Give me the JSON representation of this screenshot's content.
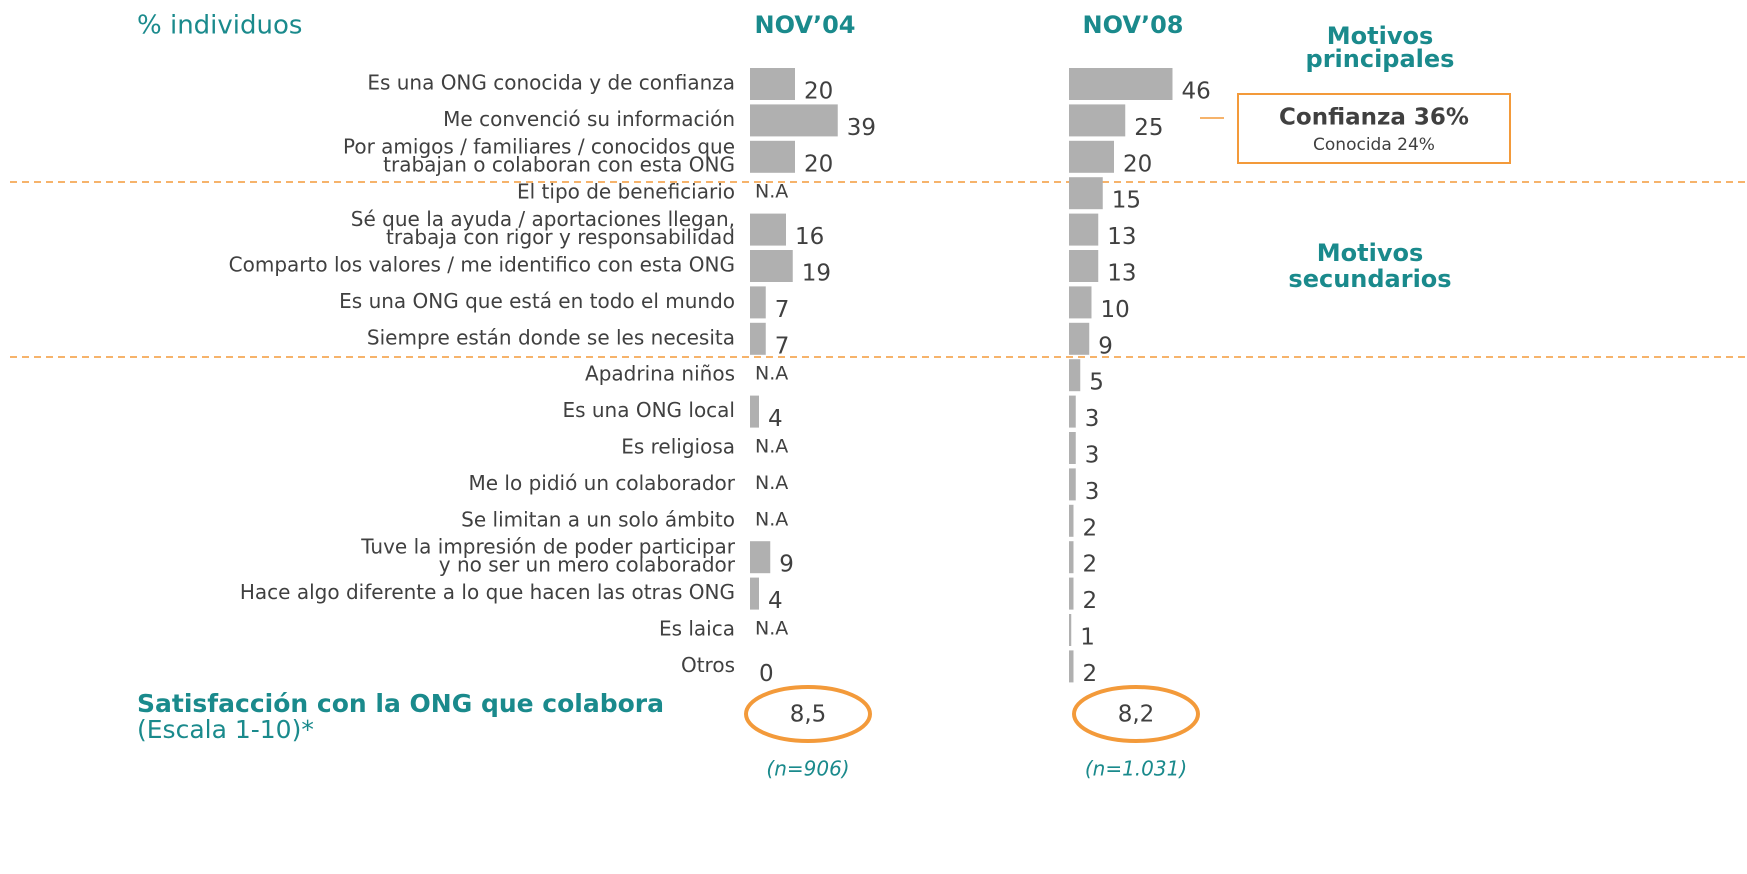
{
  "chart_data": {
    "type": "bar",
    "orientation": "horizontal",
    "title": "% individuos",
    "categories": [
      [
        "Es una ONG conocida y de confianza"
      ],
      [
        "Me convenció su información"
      ],
      [
        "Por amigos / familiares / conocidos que",
        "trabajan o colaboran con esta ONG"
      ],
      [
        "El tipo de beneficiario"
      ],
      [
        "Sé que la ayuda / aportaciones llegan,",
        "trabaja con rigor y responsabilidad"
      ],
      [
        "Comparto los valores / me identifico con esta ONG"
      ],
      [
        "Es una ONG que está en todo el mundo"
      ],
      [
        "Siempre están donde se les necesita"
      ],
      [
        "Apadrina niños"
      ],
      [
        "Es una ONG local"
      ],
      [
        "Es religiosa"
      ],
      [
        "Me lo pidió un colaborador"
      ],
      [
        "Se limitan a un solo ámbito"
      ],
      [
        "Tuve la impresión de poder participar",
        "y no ser un mero colaborador"
      ],
      [
        "Hace algo diferente a lo que hacen las otras ONG"
      ],
      [
        "Es laica"
      ],
      [
        "Otros"
      ]
    ],
    "series": [
      {
        "name": "NOV’04",
        "color": "#b0b0b0",
        "values": [
          20,
          39,
          20,
          null,
          16,
          19,
          7,
          7,
          null,
          4,
          null,
          null,
          null,
          9,
          4,
          null,
          0
        ],
        "value_labels": [
          "20",
          "39",
          "20",
          "N.A",
          "16",
          "19",
          "7",
          "7",
          "N.A",
          "4",
          "N.A",
          "N.A",
          "N.A",
          "9",
          "4",
          "N.A",
          "0"
        ],
        "n": "(n=906)",
        "satisfaction": "8,5"
      },
      {
        "name": "NOV’08",
        "color": "#b0b0b0",
        "values": [
          46,
          25,
          20,
          15,
          13,
          13,
          10,
          9,
          5,
          3,
          3,
          3,
          2,
          2,
          2,
          1,
          2
        ],
        "value_labels": [
          "46",
          "25",
          "20",
          "15",
          "13",
          "13",
          "10",
          "9",
          "5",
          "3",
          "3",
          "3",
          "2",
          "2",
          "2",
          "1",
          "2"
        ],
        "n": "(n=1.031)",
        "satisfaction": "8,2"
      }
    ],
    "groups": [
      [
        "Motivos",
        "principales"
      ],
      [
        "Motivos",
        "secundarios"
      ]
    ],
    "box": {
      "title": "Confianza 36%",
      "subtitle": "Conocida 24%"
    },
    "satisfaction": {
      "title": "Satisfacción con la ONG que colabora",
      "subtitle": "(Escala 1-10)*"
    }
  }
}
